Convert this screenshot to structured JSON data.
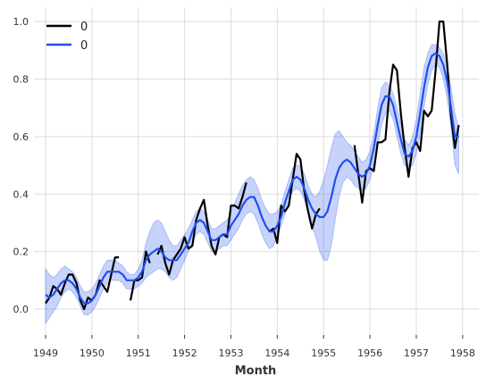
{
  "chart_data": {
    "type": "line",
    "title": "",
    "xlabel": "Month",
    "ylabel": "",
    "xlim": [
      1948.75,
      1958.35
    ],
    "ylim": [
      -0.09,
      1.05
    ],
    "xticks": [
      1949,
      1950,
      1951,
      1952,
      1953,
      1954,
      1955,
      1956,
      1957,
      1958
    ],
    "xtick_labels": [
      "1949",
      "1950",
      "1951",
      "1952",
      "1953",
      "1954",
      "1955",
      "1956",
      "1957",
      "1958"
    ],
    "yticks": [
      0.0,
      0.2,
      0.4,
      0.6,
      0.8,
      1.0
    ],
    "ytick_labels": [
      "0.0",
      "0.2",
      "0.4",
      "0.6",
      "0.8",
      "1.0"
    ],
    "grid": true,
    "legend_position": "top-left",
    "legend": [
      {
        "label": "0",
        "color": "#000000"
      },
      {
        "label": "0",
        "color": "#1f4ff0"
      }
    ],
    "series": [
      {
        "name": "0",
        "color": "#000000",
        "x": [
          1949.0,
          1949.083,
          1949.167,
          1949.25,
          1949.333,
          1949.417,
          1949.5,
          1949.583,
          1949.667,
          1949.75,
          1949.833,
          1949.917,
          1950.0,
          1950.083,
          1950.167,
          1950.25,
          1950.333,
          1950.417,
          1950.5,
          1950.583,
          1950.667,
          1950.75,
          1950.833,
          1950.917,
          1951.0,
          1951.083,
          1951.167,
          1951.25,
          1951.333,
          1951.417,
          1951.5,
          1951.583,
          1951.667,
          1951.75,
          1951.833,
          1951.917,
          1952.0,
          1952.083,
          1952.167,
          1952.25,
          1952.333,
          1952.417,
          1952.5,
          1952.583,
          1952.667,
          1952.75,
          1952.833,
          1952.917,
          1953.0,
          1953.083,
          1953.167,
          1953.25,
          1953.333,
          1953.417,
          1953.5,
          1953.583,
          1953.667,
          1953.75,
          1953.833,
          1953.917,
          1954.0,
          1954.083,
          1954.167,
          1954.25,
          1954.333,
          1954.417,
          1954.5,
          1954.583,
          1954.667,
          1954.75,
          1954.833,
          1954.917,
          1955.0,
          1955.083,
          1955.167,
          1955.25,
          1955.333,
          1955.417,
          1955.5,
          1955.583,
          1955.667,
          1955.75,
          1955.833,
          1955.917,
          1956.0,
          1956.083,
          1956.167,
          1956.25,
          1956.333,
          1956.417,
          1956.5,
          1956.583,
          1956.667,
          1956.75,
          1956.833,
          1956.917,
          1957.0,
          1957.083,
          1957.167,
          1957.25,
          1957.333,
          1957.417,
          1957.5,
          1957.583,
          1957.667,
          1957.75,
          1957.833,
          1957.917
        ],
        "values": [
          0.02,
          0.04,
          0.08,
          0.07,
          0.05,
          0.09,
          0.12,
          0.12,
          0.09,
          0.03,
          0.0,
          0.04,
          0.03,
          0.05,
          0.1,
          0.08,
          0.06,
          0.12,
          0.18,
          0.18,
          null,
          null,
          0.03,
          0.1,
          0.1,
          0.11,
          0.2,
          0.16,
          null,
          0.19,
          0.22,
          0.16,
          0.12,
          0.17,
          0.19,
          0.21,
          0.25,
          0.21,
          0.22,
          0.31,
          0.35,
          0.38,
          0.29,
          0.22,
          0.19,
          0.25,
          0.26,
          0.25,
          0.36,
          0.36,
          0.35,
          0.39,
          0.44,
          null,
          null,
          null,
          null,
          null,
          0.27,
          0.28,
          0.23,
          0.36,
          0.34,
          0.36,
          0.45,
          0.54,
          0.52,
          0.41,
          0.34,
          0.28,
          0.33,
          0.35,
          null,
          null,
          null,
          null,
          null,
          null,
          null,
          null,
          0.57,
          0.47,
          0.37,
          0.48,
          0.49,
          0.48,
          0.58,
          0.58,
          0.59,
          0.75,
          0.85,
          0.83,
          0.68,
          0.56,
          0.46,
          0.56,
          0.58,
          0.55,
          0.69,
          0.67,
          0.69,
          0.83,
          1.0,
          1.0,
          0.85,
          0.67,
          0.56,
          0.64
        ]
      },
      {
        "name": "0",
        "color": "#1f4ff0",
        "x": [
          1949.0,
          1949.083,
          1949.167,
          1949.25,
          1949.333,
          1949.417,
          1949.5,
          1949.583,
          1949.667,
          1949.75,
          1949.833,
          1949.917,
          1950.0,
          1950.083,
          1950.167,
          1950.25,
          1950.333,
          1950.417,
          1950.5,
          1950.583,
          1950.667,
          1950.75,
          1950.833,
          1950.917,
          1951.0,
          1951.083,
          1951.167,
          1951.25,
          1951.333,
          1951.417,
          1951.5,
          1951.583,
          1951.667,
          1951.75,
          1951.833,
          1951.917,
          1952.0,
          1952.083,
          1952.167,
          1952.25,
          1952.333,
          1952.417,
          1952.5,
          1952.583,
          1952.667,
          1952.75,
          1952.833,
          1952.917,
          1953.0,
          1953.083,
          1953.167,
          1953.25,
          1953.333,
          1953.417,
          1953.5,
          1953.583,
          1953.667,
          1953.75,
          1953.833,
          1953.917,
          1954.0,
          1954.083,
          1954.167,
          1954.25,
          1954.333,
          1954.417,
          1954.5,
          1954.583,
          1954.667,
          1954.75,
          1954.833,
          1954.917,
          1955.0,
          1955.083,
          1955.167,
          1955.25,
          1955.333,
          1955.417,
          1955.5,
          1955.583,
          1955.667,
          1955.75,
          1955.833,
          1955.917,
          1956.0,
          1956.083,
          1956.167,
          1956.25,
          1956.333,
          1956.417,
          1956.5,
          1956.583,
          1956.667,
          1956.75,
          1956.833,
          1956.917,
          1957.0,
          1957.083,
          1957.167,
          1957.25,
          1957.333,
          1957.417,
          1957.5,
          1957.583,
          1957.667,
          1957.75,
          1957.833,
          1957.917
        ],
        "values": [
          0.05,
          0.04,
          0.05,
          0.07,
          0.09,
          0.1,
          0.1,
          0.09,
          0.07,
          0.04,
          0.02,
          0.02,
          0.03,
          0.05,
          0.08,
          0.11,
          0.13,
          0.13,
          0.13,
          0.13,
          0.12,
          0.1,
          0.1,
          0.1,
          0.11,
          0.13,
          0.17,
          0.19,
          0.2,
          0.21,
          0.2,
          0.18,
          0.17,
          0.17,
          0.17,
          0.19,
          0.21,
          0.23,
          0.27,
          0.3,
          0.31,
          0.3,
          0.27,
          0.24,
          0.24,
          0.25,
          0.26,
          0.26,
          0.29,
          0.31,
          0.33,
          0.36,
          0.38,
          0.39,
          0.39,
          0.36,
          0.32,
          0.29,
          0.27,
          0.27,
          0.29,
          0.32,
          0.37,
          0.41,
          0.45,
          0.46,
          0.45,
          0.42,
          0.38,
          0.35,
          0.33,
          0.32,
          0.32,
          0.34,
          0.39,
          0.45,
          0.49,
          0.51,
          0.52,
          0.51,
          0.49,
          0.47,
          0.46,
          0.47,
          0.5,
          0.56,
          0.64,
          0.71,
          0.74,
          0.74,
          0.71,
          0.65,
          0.59,
          0.54,
          0.53,
          0.55,
          0.6,
          0.68,
          0.77,
          0.84,
          0.88,
          0.89,
          0.88,
          0.85,
          0.79,
          0.7,
          0.6,
          0.6
        ]
      }
    ],
    "band": {
      "series": "0",
      "color": "#1f4ff0",
      "opacity": 0.25,
      "x": [
        1949.0,
        1949.083,
        1949.167,
        1949.25,
        1949.333,
        1949.417,
        1949.5,
        1949.583,
        1949.667,
        1949.75,
        1949.833,
        1949.917,
        1950.0,
        1950.083,
        1950.167,
        1950.25,
        1950.333,
        1950.417,
        1950.5,
        1950.583,
        1950.667,
        1950.75,
        1950.833,
        1950.917,
        1951.0,
        1951.083,
        1951.167,
        1951.25,
        1951.333,
        1951.417,
        1951.5,
        1951.583,
        1951.667,
        1951.75,
        1951.833,
        1951.917,
        1952.0,
        1952.083,
        1952.167,
        1952.25,
        1952.333,
        1952.417,
        1952.5,
        1952.583,
        1952.667,
        1952.75,
        1952.833,
        1952.917,
        1953.0,
        1953.083,
        1953.167,
        1953.25,
        1953.333,
        1953.417,
        1953.5,
        1953.583,
        1953.667,
        1953.75,
        1953.833,
        1953.917,
        1954.0,
        1954.083,
        1954.167,
        1954.25,
        1954.333,
        1954.417,
        1954.5,
        1954.583,
        1954.667,
        1954.75,
        1954.833,
        1954.917,
        1955.0,
        1955.083,
        1955.167,
        1955.25,
        1955.333,
        1955.417,
        1955.5,
        1955.583,
        1955.667,
        1955.75,
        1955.833,
        1955.917,
        1956.0,
        1956.083,
        1956.167,
        1956.25,
        1956.333,
        1956.417,
        1956.5,
        1956.583,
        1956.667,
        1956.75,
        1956.833,
        1956.917,
        1957.0,
        1957.083,
        1957.167,
        1957.25,
        1957.333,
        1957.417,
        1957.5,
        1957.583,
        1957.667,
        1957.75,
        1957.833,
        1957.917
      ],
      "lower": [
        -0.05,
        -0.03,
        -0.01,
        0.01,
        0.04,
        0.06,
        0.07,
        0.06,
        0.04,
        0.01,
        -0.02,
        -0.02,
        -0.01,
        0.01,
        0.04,
        0.07,
        0.09,
        0.1,
        0.1,
        0.1,
        0.09,
        0.07,
        0.07,
        0.07,
        0.08,
        0.09,
        0.11,
        0.12,
        0.13,
        0.14,
        0.14,
        0.13,
        0.11,
        0.1,
        0.11,
        0.14,
        0.17,
        0.2,
        0.23,
        0.26,
        0.27,
        0.26,
        0.23,
        0.2,
        0.2,
        0.21,
        0.22,
        0.22,
        0.24,
        0.26,
        0.28,
        0.31,
        0.33,
        0.34,
        0.33,
        0.3,
        0.26,
        0.23,
        0.21,
        0.22,
        0.25,
        0.29,
        0.33,
        0.37,
        0.41,
        0.42,
        0.41,
        0.38,
        0.33,
        0.29,
        0.25,
        0.2,
        0.17,
        0.17,
        0.22,
        0.31,
        0.39,
        0.44,
        0.46,
        0.45,
        0.43,
        0.42,
        0.41,
        0.42,
        0.45,
        0.5,
        0.57,
        0.64,
        0.68,
        0.69,
        0.66,
        0.6,
        0.54,
        0.5,
        0.49,
        0.5,
        0.54,
        0.61,
        0.7,
        0.78,
        0.83,
        0.85,
        0.84,
        0.8,
        0.73,
        0.63,
        0.5,
        0.47
      ],
      "upper": [
        0.14,
        0.12,
        0.11,
        0.12,
        0.14,
        0.15,
        0.14,
        0.13,
        0.11,
        0.08,
        0.06,
        0.06,
        0.07,
        0.09,
        0.12,
        0.15,
        0.17,
        0.17,
        0.17,
        0.16,
        0.15,
        0.13,
        0.12,
        0.12,
        0.14,
        0.17,
        0.23,
        0.27,
        0.3,
        0.31,
        0.3,
        0.27,
        0.24,
        0.22,
        0.22,
        0.24,
        0.26,
        0.28,
        0.31,
        0.34,
        0.35,
        0.34,
        0.31,
        0.28,
        0.28,
        0.29,
        0.3,
        0.31,
        0.34,
        0.37,
        0.4,
        0.43,
        0.45,
        0.46,
        0.45,
        0.42,
        0.38,
        0.35,
        0.33,
        0.33,
        0.34,
        0.36,
        0.41,
        0.45,
        0.49,
        0.5,
        0.5,
        0.47,
        0.43,
        0.4,
        0.39,
        0.41,
        0.45,
        0.5,
        0.56,
        0.61,
        0.62,
        0.6,
        0.58,
        0.57,
        0.55,
        0.53,
        0.51,
        0.52,
        0.55,
        0.61,
        0.7,
        0.77,
        0.79,
        0.78,
        0.75,
        0.7,
        0.64,
        0.59,
        0.57,
        0.6,
        0.66,
        0.75,
        0.84,
        0.89,
        0.92,
        0.92,
        0.91,
        0.89,
        0.85,
        0.77,
        0.68,
        0.63
      ]
    }
  }
}
